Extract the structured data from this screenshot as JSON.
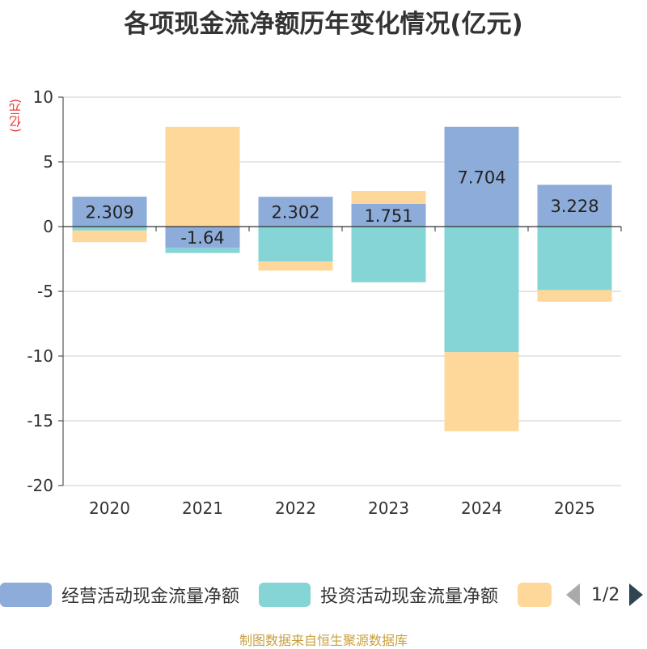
{
  "title": "各项现金流净额历年变化情况(亿元)",
  "unit_label": "(亿元)",
  "chart_data": {
    "type": "bar",
    "stacked": true,
    "categories": [
      "2020",
      "2021",
      "2022",
      "2023",
      "2024",
      "2025"
    ],
    "series": [
      {
        "name": "经营活动现金流量净额",
        "color": "#8eacd9",
        "values": [
          2.309,
          -1.64,
          2.302,
          1.751,
          7.704,
          3.228
        ]
      },
      {
        "name": "投资活动现金流量净额",
        "color": "#85d4d6",
        "values": [
          -0.3,
          -0.4,
          -2.7,
          -4.3,
          -9.7,
          -4.9
        ]
      },
      {
        "name": "",
        "color": "#fdd89a",
        "values": [
          -0.9,
          7.7,
          -0.7,
          1.0,
          -6.1,
          -0.9
        ]
      }
    ],
    "data_labels": [
      "2.309",
      "-1.64",
      "2.302",
      "1.751",
      "7.704",
      "3.228"
    ],
    "ylim": [
      -20,
      10
    ],
    "yticks": [
      10,
      5,
      0,
      -5,
      -10,
      -15,
      -20
    ],
    "ytick_labels": [
      "10",
      "5",
      "0",
      "-5",
      "-10",
      "-15",
      "-20"
    ],
    "grid": true
  },
  "legend": {
    "items": [
      {
        "label": "经营活动现金流量净额",
        "color": "#8eacd9"
      },
      {
        "label": "投资活动现金流量净额",
        "color": "#85d4d6"
      },
      {
        "label": "",
        "color": "#fdd89a"
      }
    ],
    "pager": "1/2"
  },
  "source": "制图数据来自恒生聚源数据库"
}
